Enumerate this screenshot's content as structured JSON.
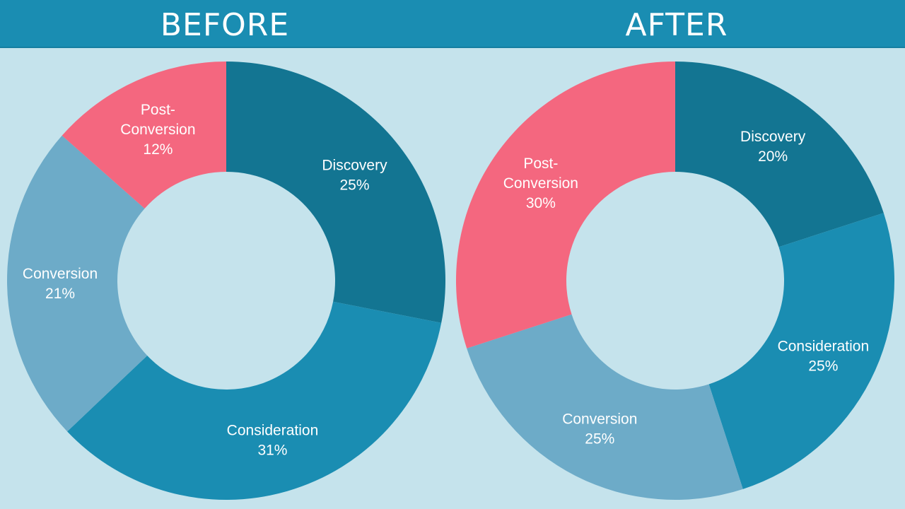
{
  "header": {
    "before_title": "BEFORE",
    "after_title": "AFTER"
  },
  "colors": {
    "Discovery": "#137592",
    "Consideration": "#1a8db2",
    "Conversion": "#6dabc8",
    "Post-Conversion": "#f4677f"
  },
  "chart_data": [
    {
      "type": "pie",
      "variant": "donut",
      "title": "BEFORE",
      "start_angle_deg": 0,
      "direction": "clockwise",
      "slices": [
        {
          "name": "Discovery",
          "value": 25,
          "label_lines": [
            "Discovery",
            "25%"
          ]
        },
        {
          "name": "Consideration",
          "value": 31,
          "label_lines": [
            "Consideration",
            "31%"
          ]
        },
        {
          "name": "Conversion",
          "value": 21,
          "label_lines": [
            "Conversion",
            "21%"
          ]
        },
        {
          "name": "Post-Conversion",
          "value": 12,
          "label_lines": [
            "Post-",
            "Conversion",
            "12%"
          ]
        }
      ]
    },
    {
      "type": "pie",
      "variant": "donut",
      "title": "AFTER",
      "start_angle_deg": 0,
      "direction": "clockwise",
      "slices": [
        {
          "name": "Discovery",
          "value": 20,
          "label_lines": [
            "Discovery",
            "20%"
          ]
        },
        {
          "name": "Consideration",
          "value": 25,
          "label_lines": [
            "Consideration",
            "25%"
          ]
        },
        {
          "name": "Conversion",
          "value": 25,
          "label_lines": [
            "Conversion",
            "25%"
          ]
        },
        {
          "name": "Post-Conversion",
          "value": 30,
          "label_lines": [
            "Post-",
            "Conversion",
            "30%"
          ]
        }
      ]
    }
  ]
}
